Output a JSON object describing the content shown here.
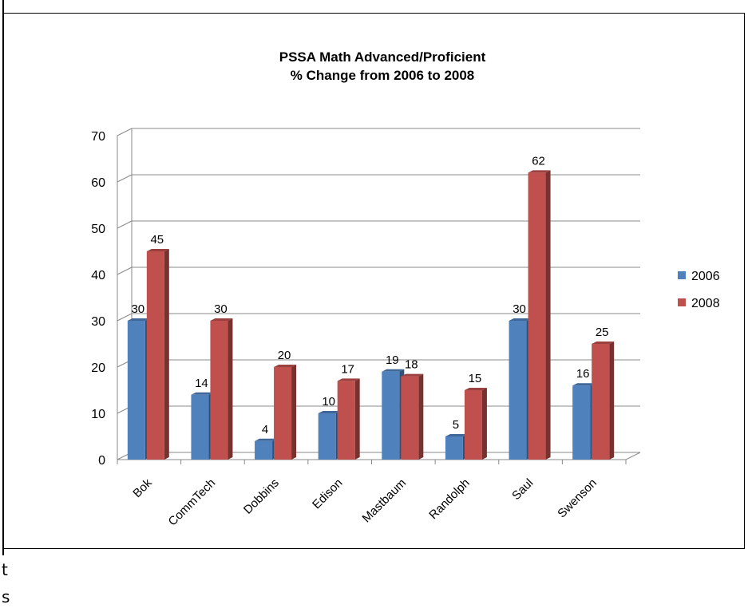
{
  "chart_data": {
    "type": "bar",
    "title": "PSSA Math Advanced/Proficient",
    "subtitle": "% Change from 2006 to 2008",
    "categories": [
      "Bok",
      "CommTech",
      "Dobbins",
      "Edison",
      "Mastbaum",
      "Randolph",
      "Saul",
      "Swenson"
    ],
    "series": [
      {
        "name": "2006",
        "values": [
          30,
          14,
          4,
          10,
          19,
          5,
          30,
          16
        ],
        "color": "#4F81BD"
      },
      {
        "name": "2008",
        "values": [
          45,
          30,
          20,
          17,
          18,
          15,
          62,
          25
        ],
        "color": "#C0504D"
      }
    ],
    "ylim": [
      0,
      70
    ],
    "yticks": [
      0,
      10,
      20,
      30,
      40,
      50,
      60,
      70
    ],
    "grid": true,
    "legend": "right",
    "style": "3d-column"
  },
  "stray_text": [
    "t",
    "s"
  ]
}
